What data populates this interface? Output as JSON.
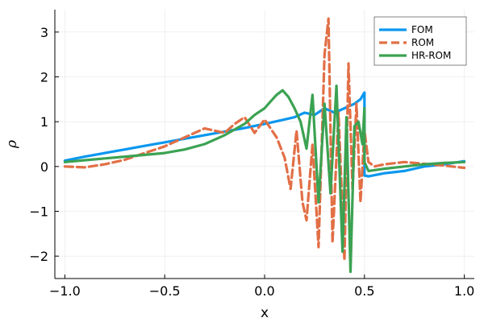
{
  "chart_data": {
    "type": "line",
    "title": "",
    "xlabel": "x",
    "ylabel": "ρ",
    "xlim": [
      -1.05,
      1.05
    ],
    "ylim": [
      -2.5,
      3.5
    ],
    "xticks": [
      -1.0,
      -0.5,
      0.0,
      0.5,
      1.0
    ],
    "xtick_labels": [
      "−1.0",
      "−0.5",
      "0.0",
      "0.5",
      "1.0"
    ],
    "yticks": [
      -2,
      -1,
      0,
      1,
      2,
      3
    ],
    "ytick_labels": [
      "−2",
      "−1",
      "0",
      "1",
      "2",
      "3"
    ],
    "grid": true,
    "legend_position": "top-right",
    "series": [
      {
        "name": "FOM",
        "color": "#0a97ef",
        "style": "solid",
        "x": [
          -1.0,
          -0.9,
          -0.8,
          -0.7,
          -0.6,
          -0.5,
          -0.4,
          -0.3,
          -0.2,
          -0.1,
          0.0,
          0.05,
          0.1,
          0.15,
          0.2,
          0.25,
          0.3,
          0.35,
          0.4,
          0.45,
          0.48,
          0.5,
          0.5,
          0.52,
          0.6,
          0.7,
          0.8,
          0.9,
          1.0
        ],
        "y": [
          0.13,
          0.22,
          0.3,
          0.38,
          0.46,
          0.54,
          0.62,
          0.7,
          0.78,
          0.86,
          0.95,
          1.0,
          1.05,
          1.1,
          1.2,
          1.15,
          1.3,
          1.2,
          1.3,
          1.4,
          1.5,
          1.65,
          -0.2,
          -0.22,
          -0.15,
          -0.1,
          0.0,
          0.05,
          0.12
        ]
      },
      {
        "name": "ROM",
        "color": "#e26f46",
        "style": "dashed",
        "x": [
          -1.0,
          -0.9,
          -0.8,
          -0.7,
          -0.6,
          -0.5,
          -0.45,
          -0.4,
          -0.35,
          -0.3,
          -0.25,
          -0.2,
          -0.15,
          -0.1,
          -0.05,
          0.0,
          0.03,
          0.06,
          0.1,
          0.13,
          0.16,
          0.19,
          0.21,
          0.24,
          0.27,
          0.3,
          0.32,
          0.34,
          0.37,
          0.4,
          0.42,
          0.44,
          0.46,
          0.48,
          0.5,
          0.52,
          0.55,
          0.6,
          0.7,
          0.8,
          0.9,
          1.0
        ],
        "y": [
          0.0,
          -0.02,
          0.05,
          0.15,
          0.3,
          0.45,
          0.55,
          0.65,
          0.75,
          0.85,
          0.8,
          0.75,
          0.95,
          1.1,
          0.75,
          1.05,
          0.85,
          0.65,
          0.2,
          -0.5,
          0.8,
          -0.8,
          -1.2,
          0.5,
          -1.8,
          2.5,
          3.3,
          -1.7,
          1.2,
          -2.1,
          2.3,
          -0.5,
          1.4,
          -0.8,
          0.8,
          0.1,
          0.0,
          0.05,
          0.1,
          0.06,
          0.02,
          -0.03
        ]
      },
      {
        "name": "HR-ROM",
        "color": "#3ba252",
        "style": "solid",
        "x": [
          -1.0,
          -0.9,
          -0.8,
          -0.7,
          -0.6,
          -0.5,
          -0.4,
          -0.3,
          -0.2,
          -0.1,
          -0.05,
          0.0,
          0.03,
          0.06,
          0.09,
          0.12,
          0.15,
          0.18,
          0.21,
          0.24,
          0.27,
          0.3,
          0.33,
          0.36,
          0.39,
          0.41,
          0.43,
          0.45,
          0.47,
          0.49,
          0.5,
          0.5,
          0.52,
          0.6,
          0.7,
          0.8,
          0.9,
          1.0
        ],
        "y": [
          0.1,
          0.14,
          0.18,
          0.22,
          0.26,
          0.3,
          0.38,
          0.5,
          0.7,
          0.95,
          1.15,
          1.3,
          1.45,
          1.6,
          1.7,
          1.55,
          1.3,
          1.0,
          0.4,
          1.6,
          -0.8,
          1.4,
          -0.6,
          1.8,
          -1.9,
          1.1,
          -2.35,
          0.9,
          1.0,
          0.5,
          1.3,
          0.1,
          -0.1,
          -0.05,
          0.0,
          0.05,
          0.08,
          0.1
        ]
      }
    ]
  }
}
